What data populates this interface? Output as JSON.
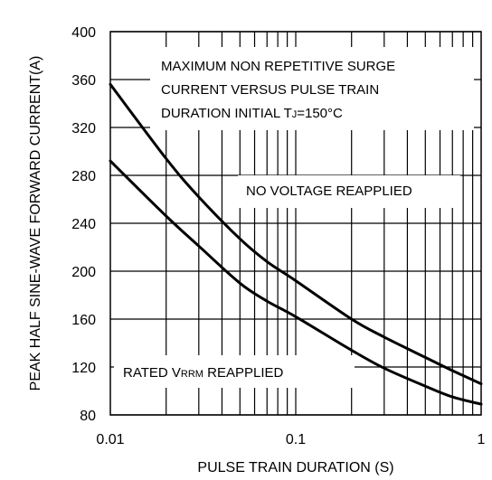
{
  "chart_data": {
    "type": "line",
    "title_lines": [
      "MAXIMUM NON REPETITIVE SURGE",
      "CURRENT VERSUS PULSE TRAIN"
    ],
    "title_line3_prefix": "DURATION INITIAL T",
    "title_line3_sub": "J",
    "title_line3_suffix": "=150°C",
    "xlabel": "PULSE TRAIN DURATION (S)",
    "ylabel": "PEAK HALF SINE-WAVE FORWARD CURRENT(A)",
    "x_scale": "log",
    "xlim": [
      0.01,
      1
    ],
    "ylim": [
      80,
      400
    ],
    "x_ticks": [
      {
        "value": 0.01,
        "label": "0.01"
      },
      {
        "value": 0.1,
        "label": "0.1"
      },
      {
        "value": 1,
        "label": "1"
      }
    ],
    "y_ticks": [
      80,
      120,
      160,
      200,
      240,
      280,
      320,
      360,
      400
    ],
    "grid": true,
    "series": [
      {
        "label": "NO VOLTAGE REAPPLIED",
        "x": [
          0.01,
          0.02,
          0.03,
          0.05,
          0.07,
          0.1,
          0.2,
          0.3,
          0.5,
          0.7,
          1.0
        ],
        "y": [
          356,
          294,
          262,
          227,
          208,
          192,
          160,
          145,
          128,
          117,
          106
        ]
      },
      {
        "label_prefix": "RATED V",
        "label_sub": "RRM",
        "label_suffix": " REAPPLIED",
        "x": [
          0.01,
          0.02,
          0.03,
          0.05,
          0.07,
          0.1,
          0.2,
          0.3,
          0.5,
          0.7,
          1.0
        ],
        "y": [
          292,
          246,
          221,
          190,
          175,
          162,
          134,
          119,
          104,
          95,
          89
        ]
      }
    ]
  }
}
